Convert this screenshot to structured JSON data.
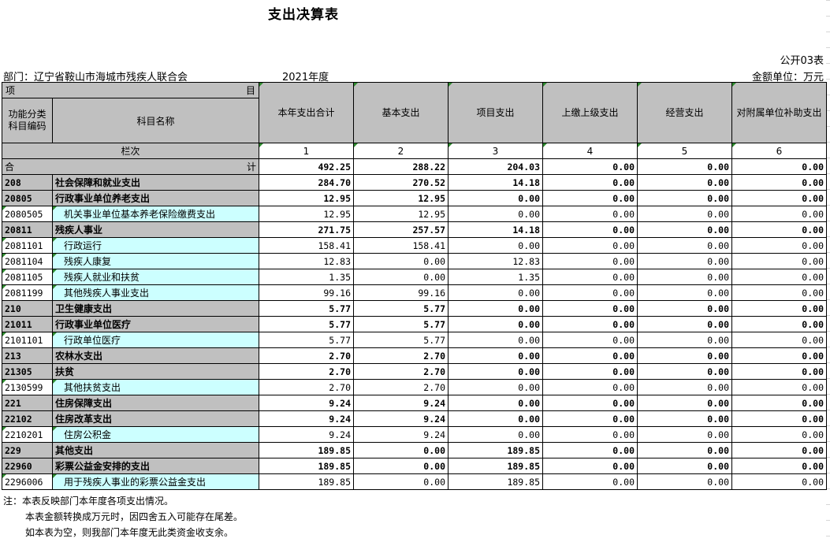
{
  "title": "支出决算表",
  "table_code": "公开03表",
  "department": "部门：辽宁省鞍山市海城市残疾人联合会",
  "year": "2021年度",
  "unit": "金额单位：万元",
  "header": {
    "xiang": "项",
    "mu": "目",
    "code_label": "功能分类\n科目编码",
    "name_label": "科目名称",
    "lanci": "栏次",
    "columns": [
      "本年支出合计",
      "基本支出",
      "项目支出",
      "上缴上级支出",
      "经营支出",
      "对附属单位补助支出"
    ],
    "column_numbers": [
      "1",
      "2",
      "3",
      "4",
      "5",
      "6"
    ]
  },
  "total": {
    "left": "合",
    "right": "计",
    "values": [
      "492.25",
      "288.22",
      "204.03",
      "0.00",
      "0.00",
      "0.00"
    ]
  },
  "rows": [
    {
      "code": "208",
      "name": "社会保障和就业支出",
      "level": "bold",
      "values": [
        "284.70",
        "270.52",
        "14.18",
        "0.00",
        "0.00",
        "0.00"
      ]
    },
    {
      "code": "20805",
      "name": "行政事业单位养老支出",
      "level": "bold",
      "values": [
        "12.95",
        "12.95",
        "0.00",
        "0.00",
        "0.00",
        "0.00"
      ]
    },
    {
      "code": "2080505",
      "name": "机关事业单位基本养老保险缴费支出",
      "level": "leaf",
      "values": [
        "12.95",
        "12.95",
        "0.00",
        "0.00",
        "0.00",
        "0.00"
      ]
    },
    {
      "code": "20811",
      "name": "残疾人事业",
      "level": "bold",
      "values": [
        "271.75",
        "257.57",
        "14.18",
        "0.00",
        "0.00",
        "0.00"
      ]
    },
    {
      "code": "2081101",
      "name": "行政运行",
      "level": "leaf",
      "values": [
        "158.41",
        "158.41",
        "0.00",
        "0.00",
        "0.00",
        "0.00"
      ]
    },
    {
      "code": "2081104",
      "name": "残疾人康复",
      "level": "leaf",
      "values": [
        "12.83",
        "0.00",
        "12.83",
        "0.00",
        "0.00",
        "0.00"
      ]
    },
    {
      "code": "2081105",
      "name": "残疾人就业和扶贫",
      "level": "leaf",
      "values": [
        "1.35",
        "0.00",
        "1.35",
        "0.00",
        "0.00",
        "0.00"
      ]
    },
    {
      "code": "2081199",
      "name": "其他残疾人事业支出",
      "level": "leaf",
      "values": [
        "99.16",
        "99.16",
        "0.00",
        "0.00",
        "0.00",
        "0.00"
      ]
    },
    {
      "code": "210",
      "name": "卫生健康支出",
      "level": "bold",
      "values": [
        "5.77",
        "5.77",
        "0.00",
        "0.00",
        "0.00",
        "0.00"
      ]
    },
    {
      "code": "21011",
      "name": "行政事业单位医疗",
      "level": "bold",
      "values": [
        "5.77",
        "5.77",
        "0.00",
        "0.00",
        "0.00",
        "0.00"
      ]
    },
    {
      "code": "2101101",
      "name": "行政单位医疗",
      "level": "leaf",
      "values": [
        "5.77",
        "5.77",
        "0.00",
        "0.00",
        "0.00",
        "0.00"
      ]
    },
    {
      "code": "213",
      "name": "农林水支出",
      "level": "bold",
      "values": [
        "2.70",
        "2.70",
        "0.00",
        "0.00",
        "0.00",
        "0.00"
      ]
    },
    {
      "code": "21305",
      "name": "扶贫",
      "level": "bold",
      "values": [
        "2.70",
        "2.70",
        "0.00",
        "0.00",
        "0.00",
        "0.00"
      ]
    },
    {
      "code": "2130599",
      "name": "其他扶贫支出",
      "level": "leaf",
      "values": [
        "2.70",
        "2.70",
        "0.00",
        "0.00",
        "0.00",
        "0.00"
      ]
    },
    {
      "code": "221",
      "name": "住房保障支出",
      "level": "bold",
      "values": [
        "9.24",
        "9.24",
        "0.00",
        "0.00",
        "0.00",
        "0.00"
      ]
    },
    {
      "code": "22102",
      "name": "住房改革支出",
      "level": "bold",
      "values": [
        "9.24",
        "9.24",
        "0.00",
        "0.00",
        "0.00",
        "0.00"
      ]
    },
    {
      "code": "2210201",
      "name": "住房公积金",
      "level": "leaf",
      "values": [
        "9.24",
        "9.24",
        "0.00",
        "0.00",
        "0.00",
        "0.00"
      ]
    },
    {
      "code": "229",
      "name": "其他支出",
      "level": "bold",
      "values": [
        "189.85",
        "0.00",
        "189.85",
        "0.00",
        "0.00",
        "0.00"
      ]
    },
    {
      "code": "22960",
      "name": "彩票公益金安排的支出",
      "level": "bold",
      "values": [
        "189.85",
        "0.00",
        "189.85",
        "0.00",
        "0.00",
        "0.00"
      ]
    },
    {
      "code": "2296006",
      "name": "用于残疾人事业的彩票公益金支出",
      "level": "leaf",
      "values": [
        "189.85",
        "0.00",
        "189.85",
        "0.00",
        "0.00",
        "0.00"
      ]
    }
  ],
  "notes": [
    "注：本表反映部门本年度各项支出情况。",
    "本表金额转换成万元时，因四舍五入可能存在尾差。",
    "如本表为空，则我部门本年度无此类资金收支余。"
  ]
}
